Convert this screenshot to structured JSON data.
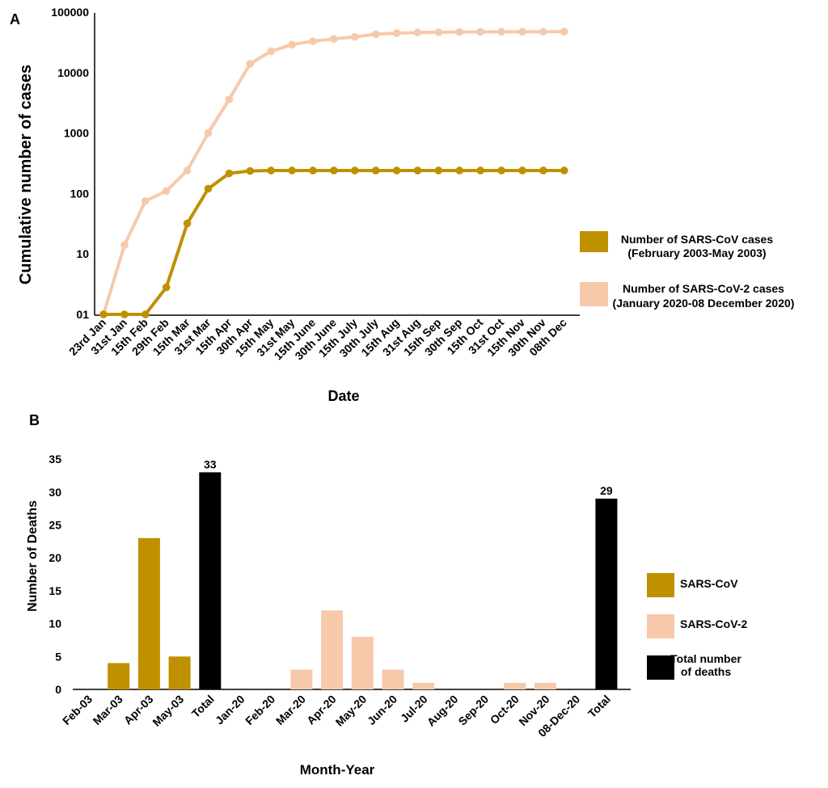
{
  "chart_data": [
    {
      "panel": "A",
      "type": "line",
      "xlabel": "Date",
      "ylabel": "Cumulative number of cases",
      "yscale": "log",
      "ylim": [
        1,
        100000
      ],
      "yticks": [
        {
          "value": 1,
          "label": "01"
        },
        {
          "value": 10,
          "label": "10"
        },
        {
          "value": 100,
          "label": "100"
        },
        {
          "value": 1000,
          "label": "1000"
        },
        {
          "value": 10000,
          "label": "10000"
        },
        {
          "value": 100000,
          "label": "100000"
        }
      ],
      "categories": [
        "23rd Jan",
        "31st Jan",
        "15th Feb",
        "29th Feb",
        "15th Mar",
        "31st Mar",
        "15th Apr",
        "30th Apr",
        "15th May",
        "31st May",
        "15th June",
        "30th June",
        "15th July",
        "30th July",
        "15th Aug",
        "31st Aug",
        "15th Sep",
        "30th Sep",
        "15th Oct",
        "31st Oct",
        "15th Nov",
        "30th Nov",
        "08th Dec"
      ],
      "series": [
        {
          "name": "SARS-CoV-2",
          "legend_line1": "Number of SARS-CoV-2 cases",
          "legend_line2": "(January 2020-08 December 2020)",
          "color": "#f7c9ab",
          "values": [
            1,
            14,
            75,
            110,
            240,
            1000,
            3600,
            14000,
            22500,
            29000,
            33000,
            36000,
            39000,
            43000,
            45000,
            46000,
            46500,
            46800,
            47000,
            47200,
            47300,
            47400,
            47600
          ]
        },
        {
          "name": "SARS-CoV",
          "legend_line1": "Number of SARS-CoV cases",
          "legend_line2": "(February 2003-May 2003)",
          "color": "#bf9000",
          "values": [
            1,
            1,
            1,
            2.8,
            32,
            120,
            215,
            236,
            240,
            240,
            240,
            240,
            240,
            240,
            240,
            240,
            240,
            240,
            240,
            240,
            240,
            240,
            240
          ]
        }
      ]
    },
    {
      "panel": "B",
      "type": "bar",
      "xlabel": "Month-Year",
      "ylabel": "Number of Deaths",
      "ylim": [
        0,
        35
      ],
      "yticks": [
        0,
        5,
        10,
        15,
        20,
        25,
        30,
        35
      ],
      "categories": [
        "Feb-03",
        "Mar-03",
        "Apr-03",
        "May-03",
        "Total",
        "Jan-20",
        "Feb-20",
        "Mar-20",
        "Apr-20",
        "May-20",
        "Jun-20",
        "Jul-20",
        "Aug-20",
        "Sep-20",
        "Oct-20",
        "Nov-20",
        "08-Dec-20",
        "Total"
      ],
      "values": [
        0,
        4,
        23,
        5,
        33,
        0,
        0,
        3,
        12,
        8,
        3,
        1,
        0,
        0,
        1,
        1,
        0,
        29
      ],
      "bar_groups": [
        "SARS-CoV",
        "SARS-CoV",
        "SARS-CoV",
        "SARS-CoV",
        "Total",
        "SARS-CoV-2",
        "SARS-CoV-2",
        "SARS-CoV-2",
        "SARS-CoV-2",
        "SARS-CoV-2",
        "SARS-CoV-2",
        "SARS-CoV-2",
        "SARS-CoV-2",
        "SARS-CoV-2",
        "SARS-CoV-2",
        "SARS-CoV-2",
        "SARS-CoV-2",
        "Total"
      ],
      "data_labels": [
        {
          "index": 4,
          "text": "33"
        },
        {
          "index": 17,
          "text": "29"
        }
      ],
      "legend": [
        {
          "key": "SARS-CoV",
          "lines": [
            "SARS-CoV"
          ],
          "color": "#bf9000"
        },
        {
          "key": "SARS-CoV-2",
          "lines": [
            "SARS-CoV-2"
          ],
          "color": "#f7c9ab"
        },
        {
          "key": "Total",
          "lines": [
            "Total number",
            "of deaths"
          ],
          "color": "#000000"
        }
      ]
    }
  ]
}
